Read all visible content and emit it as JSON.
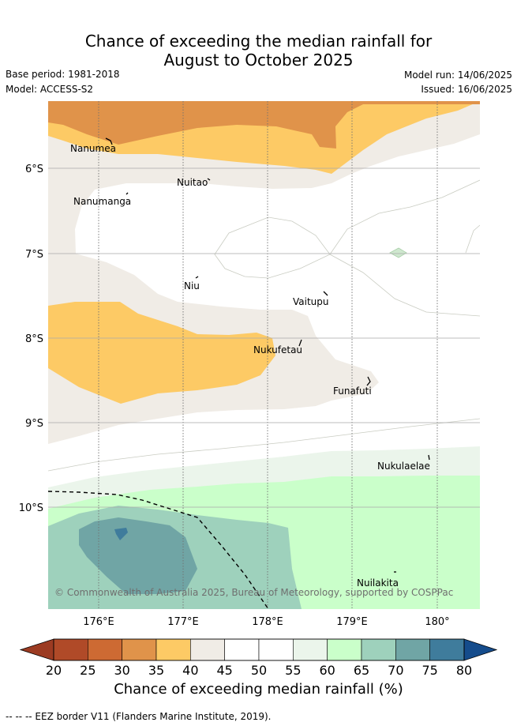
{
  "header": {
    "title_line1": "Chance of exceeding the median rainfall for",
    "title_line2": "August to October 2025",
    "base_period": "Base period: 1981-2018",
    "model": "Model: ACCESS-S2",
    "model_run": "Model run: 14/06/2025",
    "issued": "Issued: 16/06/2025"
  },
  "map": {
    "lat_labels": [
      "6°S",
      "7°S",
      "8°S",
      "9°S",
      "10°S"
    ],
    "lon_labels": [
      "176°E",
      "177°E",
      "178°E",
      "179°E",
      "180°"
    ],
    "places": [
      "Nanumea",
      "Nuitao",
      "Nanumanga",
      "Niu",
      "Vaitupu",
      "Nukufetau",
      "Funafuti",
      "Nukulaelae",
      "Nuilakita"
    ],
    "copyright": "© Commonwealth of Australia 2025, Bureau of Meteorology, supported by COSPPac",
    "colors": {
      "c30_35": "#e0934a",
      "c35_40": "#fdca65",
      "c40_45": "#f0ece6",
      "c45_55": "#ffffff",
      "c55_60": "#ebf5eb",
      "c60_65": "#caffca",
      "c65_70": "#9ed1bc",
      "c70_75": "#70a5a5"
    }
  },
  "colorbar": {
    "ticks": [
      "20",
      "25",
      "30",
      "35",
      "40",
      "45",
      "50",
      "55",
      "60",
      "65",
      "70",
      "75",
      "80"
    ],
    "colors": [
      "#b04a28",
      "#cd6a33",
      "#e0934a",
      "#fdca65",
      "#f0ece6",
      "#ffffff",
      "#ffffff",
      "#ebf5eb",
      "#caffca",
      "#9ed1bc",
      "#70a5a5",
      "#3f7c9c"
    ],
    "under_color": "#9c3b22",
    "over_color": "#154c8c",
    "label": "Chance of exceeding median rainfall (%)"
  },
  "footnote": "--  --  -- EEZ border V11 (Flanders Marine Institute, 2019)."
}
